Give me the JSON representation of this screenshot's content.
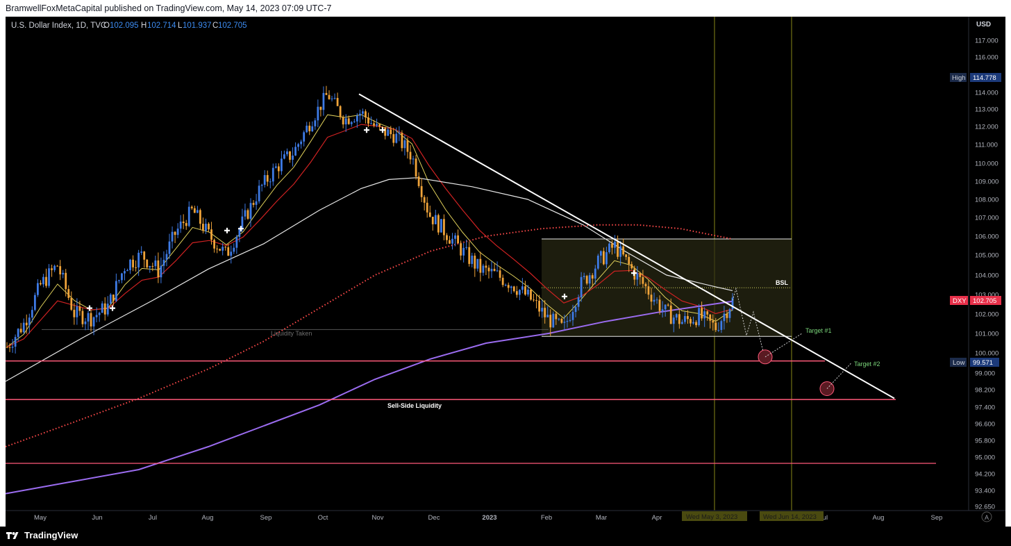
{
  "publisher": "BramwellFoxMetaCapital published on TradingView.com, May 14, 2023 07:09 UTC-7",
  "brand": {
    "icon": "tradingview-logo-icon",
    "text": "TradingView"
  },
  "colors": {
    "background": "#000000",
    "candle_up": "#3e7be6",
    "candle_down": "#f0a43a",
    "ema_fast": "#e0d05a",
    "ema_mid": "#d02222",
    "sma_white": "#e8e8e8",
    "ma_dotted": "#ff4a4a",
    "ma_purple": "#9b6cf0",
    "liquidity_line": "#ff5a7a",
    "target": "#7bd67b",
    "vertical_line": "#5a5a10"
  },
  "chart_data": {
    "type": "candlestick",
    "title": "U.S. Dollar Index, 1D, TVC",
    "ohlc": {
      "o_label": "O",
      "o": "102.095",
      "h_label": "H",
      "h": "102.714",
      "l_label": "L",
      "l": "101.937",
      "c_label": "C",
      "c": "102.705"
    },
    "currency": "USD",
    "y_ticks": [
      "117.000",
      "116.000",
      "115.000",
      "114.000",
      "113.000",
      "112.000",
      "111.000",
      "110.000",
      "109.000",
      "108.000",
      "107.000",
      "106.000",
      "105.000",
      "104.000",
      "103.000",
      "102.000",
      "101.000",
      "100.000",
      "99.000",
      "98.200",
      "97.400",
      "96.600",
      "95.800",
      "95.000",
      "94.200",
      "93.400",
      "92.650"
    ],
    "x_ticks": [
      "May",
      "Jun",
      "Jul",
      "Aug",
      "Sep",
      "Oct",
      "Nov",
      "Dec",
      "2023",
      "Feb",
      "Mar",
      "Apr",
      "May",
      "Jun",
      "Jul",
      "Aug",
      "Sep"
    ],
    "high_badge": {
      "label": "High",
      "value": "114.778"
    },
    "low_badge": {
      "label": "Low",
      "value": "99.571"
    },
    "last_badge": {
      "label": "DXY",
      "value": "102.705"
    },
    "date_badges": [
      "Wed May 3, 2023",
      "Wed Jun 14, 2023"
    ],
    "annotations": {
      "bsl": "BSL",
      "liquidity_taken": "Liquidity Taken",
      "sell_side": "Sell-Side Liquidity",
      "target1": "Target #1",
      "target2": "Target #2",
      "auto": "A"
    },
    "levels": {
      "bsl": 103.35,
      "range_top": 105.85,
      "range_bottom": 100.85,
      "liquidity_taken": 101.2,
      "liq1": 99.6,
      "sell_side": 97.75,
      "lower": 94.7,
      "target1": 99.8,
      "target2": 98.25
    },
    "trendline": {
      "start": {
        "x": "Oct",
        "y": 113.9
      },
      "end": {
        "x": "Aug",
        "y": 97.8
      }
    },
    "close_series_approx": [
      {
        "m": "Apr",
        "v": 100.3
      },
      {
        "m": "Apr",
        "v": 101.5
      },
      {
        "m": "May",
        "v": 103.5
      },
      {
        "m": "May",
        "v": 104.5
      },
      {
        "m": "May",
        "v": 102.0
      },
      {
        "m": "Jun",
        "v": 101.8
      },
      {
        "m": "Jun",
        "v": 102.4
      },
      {
        "m": "Jun",
        "v": 104.5
      },
      {
        "m": "Jun",
        "v": 105.0
      },
      {
        "m": "Jul",
        "v": 104.2
      },
      {
        "m": "Jul",
        "v": 106.2
      },
      {
        "m": "Jul",
        "v": 107.4
      },
      {
        "m": "Aug",
        "v": 106.0
      },
      {
        "m": "Aug",
        "v": 105.0
      },
      {
        "m": "Aug",
        "v": 106.8
      },
      {
        "m": "Sep",
        "v": 108.6
      },
      {
        "m": "Sep",
        "v": 109.8
      },
      {
        "m": "Sep",
        "v": 110.6
      },
      {
        "m": "Sep",
        "v": 112.3
      },
      {
        "m": "Oct",
        "v": 113.9
      },
      {
        "m": "Oct",
        "v": 112.4
      },
      {
        "m": "Oct",
        "v": 112.8
      },
      {
        "m": "Oct",
        "v": 111.8
      },
      {
        "m": "Nov",
        "v": 111.5
      },
      {
        "m": "Nov",
        "v": 110.4
      },
      {
        "m": "Nov",
        "v": 107.2
      },
      {
        "m": "Nov",
        "v": 106.2
      },
      {
        "m": "Dec",
        "v": 105.2
      },
      {
        "m": "Dec",
        "v": 104.3
      },
      {
        "m": "Dec",
        "v": 104.0
      },
      {
        "m": "Jan",
        "v": 103.5
      },
      {
        "m": "Jan",
        "v": 102.8
      },
      {
        "m": "Jan",
        "v": 101.8
      },
      {
        "m": "Feb",
        "v": 101.2
      },
      {
        "m": "Feb",
        "v": 103.5
      },
      {
        "m": "Feb",
        "v": 104.6
      },
      {
        "m": "Mar",
        "v": 105.5
      },
      {
        "m": "Mar",
        "v": 104.3
      },
      {
        "m": "Mar",
        "v": 103.2
      },
      {
        "m": "Apr",
        "v": 102.1
      },
      {
        "m": "Apr",
        "v": 101.6
      },
      {
        "m": "Apr",
        "v": 101.9
      },
      {
        "m": "May",
        "v": 101.3
      },
      {
        "m": "May",
        "v": 102.7
      }
    ]
  }
}
